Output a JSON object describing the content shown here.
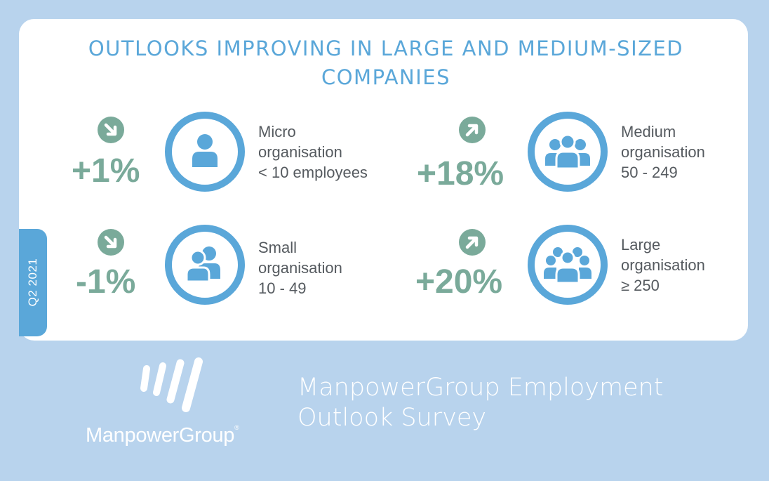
{
  "title": "OUTLOOKS IMPROVING IN LARGE AND MEDIUM-SIZED COMPANIES",
  "period_tab": "Q2 2021",
  "colors": {
    "accent_blue": "#5aa7d9",
    "accent_green": "#7aaa9a",
    "background": "#b8d3ed"
  },
  "organisations": [
    {
      "value": "+1%",
      "trend": "down",
      "icon": "single-person-icon",
      "label_line1": "Micro",
      "label_line2": "organisation",
      "label_line3": "< 10 employees"
    },
    {
      "value": "-1%",
      "trend": "down",
      "icon": "two-people-icon",
      "label_line1": "Small",
      "label_line2": "organisation",
      "label_line3": "10 - 49"
    },
    {
      "value": "+18%",
      "trend": "up",
      "icon": "group-icon",
      "label_line1": "Medium",
      "label_line2": "organisation",
      "label_line3": "50 - 249"
    },
    {
      "value": "+20%",
      "trend": "up",
      "icon": "large-group-icon",
      "label_line1": "Large",
      "label_line2": "organisation",
      "label_line3": "≥ 250"
    }
  ],
  "footer": {
    "logo_text": "ManpowerGroup",
    "survey_line1": "ManpowerGroup Employment",
    "survey_line2": "Outlook Survey"
  }
}
